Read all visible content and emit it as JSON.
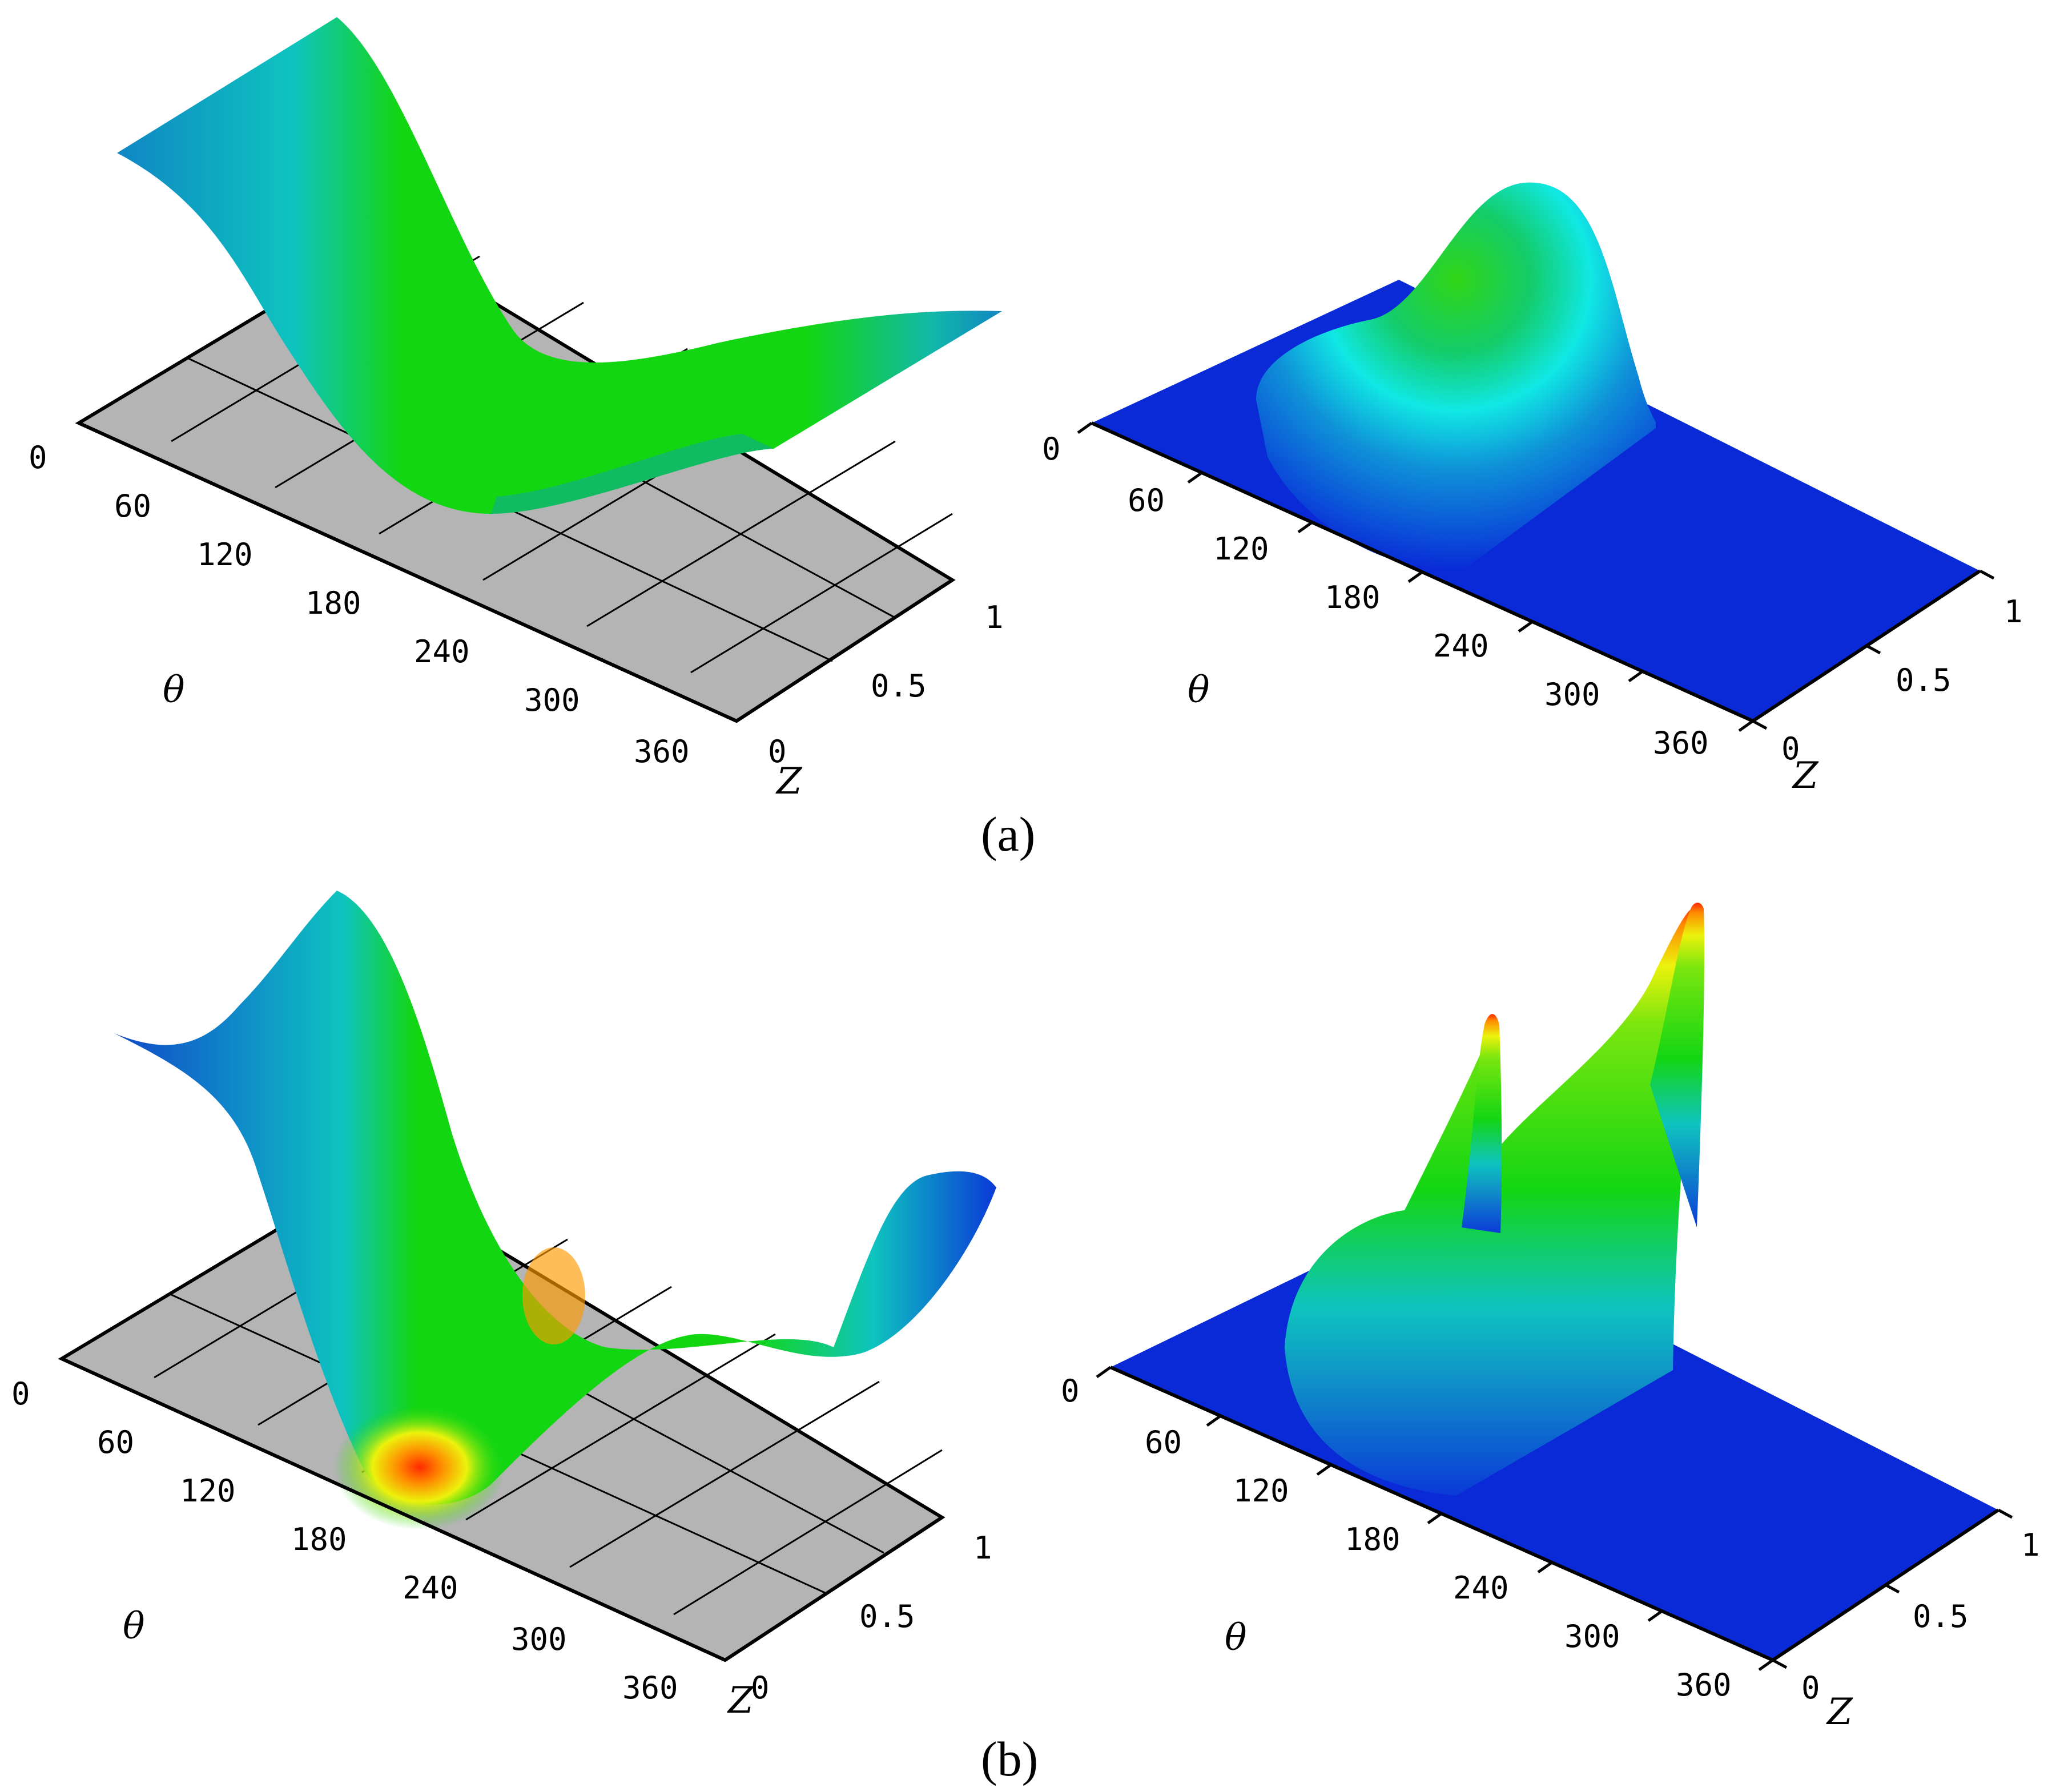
{
  "figure": {
    "panel_labels": [
      "(a)",
      "(b)"
    ],
    "colors": {
      "base_plane_gray": "#b4b4b4",
      "base_plane_blue": "#0a2ad8",
      "surface_green": "#13d613",
      "surface_teal": "#0ec6c2",
      "surface_blue": "#0f8ac9",
      "surface_yellow": "#ecf20c",
      "surface_orange": "#ff8a00",
      "surface_red": "#ff2a00"
    }
  },
  "chart_data": [
    {
      "panel": "(a)",
      "position": "left",
      "type": "surface",
      "xlabel": "θ",
      "ylabel": "Z",
      "x_ticks": [
        "0",
        "60",
        "120",
        "180",
        "240",
        "300",
        "360"
      ],
      "y_ticks": [
        "0",
        "0.5",
        "1"
      ],
      "xlim": [
        0,
        360
      ],
      "ylim": [
        0,
        1
      ],
      "grid": true,
      "base_plane": "gray",
      "shape": "film thickness: high near θ=0, falls to a minimum around θ≈150–180, rises again toward θ=360"
    },
    {
      "panel": "(a)",
      "position": "right",
      "type": "surface",
      "xlabel": "θ",
      "ylabel": "Z",
      "x_ticks": [
        "0",
        "60",
        "120",
        "180",
        "240",
        "300",
        "360"
      ],
      "y_ticks": [
        "0",
        "0.5",
        "1"
      ],
      "xlim": [
        0,
        360
      ],
      "ylim": [
        0,
        1
      ],
      "grid": false,
      "base_plane": "blue",
      "shape": "pressure: single smooth peak centred near θ≈150, zero elsewhere"
    },
    {
      "panel": "(b)",
      "position": "left",
      "type": "surface",
      "xlabel": "θ",
      "ylabel": "Z",
      "x_ticks": [
        "0",
        "60",
        "120",
        "180",
        "240",
        "300",
        "360"
      ],
      "y_ticks": [
        "0",
        "0.5",
        "1"
      ],
      "xlim": [
        0,
        360
      ],
      "ylim": [
        0,
        1
      ],
      "grid": true,
      "base_plane": "gray",
      "shape": "film thickness with deeper minimum (orange/red) near θ≈180 and wavy edges"
    },
    {
      "panel": "(b)",
      "position": "right",
      "type": "surface",
      "xlabel": "θ",
      "ylabel": "Z",
      "x_ticks": [
        "0",
        "60",
        "120",
        "180",
        "240",
        "300",
        "360"
      ],
      "y_ticks": [
        "0",
        "0.5",
        "1"
      ],
      "xlim": [
        0,
        360
      ],
      "ylim": [
        0,
        1
      ],
      "grid": false,
      "base_plane": "blue",
      "shape": "pressure with two sharp peaks (red tips) near the edges Z=0 and Z=1"
    }
  ]
}
